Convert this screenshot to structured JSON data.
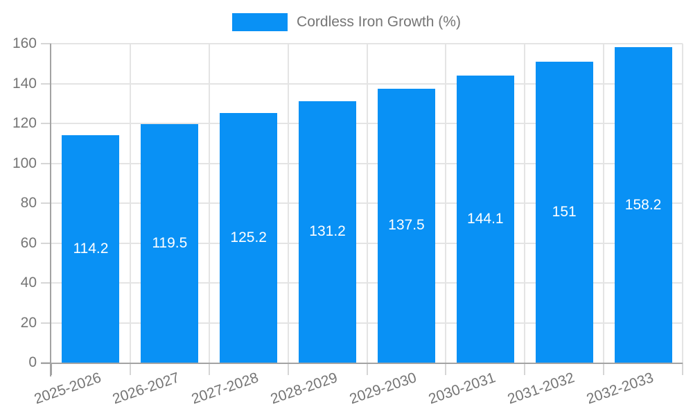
{
  "legend": {
    "label": "Cordless Iron Growth (%)"
  },
  "colors": {
    "bar": "#0991f5",
    "bar_label": "#ffffff",
    "axis": "#a3a3a3",
    "grid": "#e4e4e4",
    "tick": "#d6d6d6",
    "text": "#757575",
    "background": "#ffffff"
  },
  "chart_data": {
    "type": "bar",
    "title": "",
    "xlabel": "",
    "ylabel": "",
    "categories": [
      "2025-2026",
      "2026-2027",
      "2027-2028",
      "2028-2029",
      "2029-2030",
      "2030-2031",
      "2031-2032",
      "2032-2033"
    ],
    "series": [
      {
        "name": "Cordless Iron Growth (%)",
        "values": [
          114.2,
          119.5,
          125.2,
          131.2,
          137.5,
          144.1,
          151,
          158.2
        ],
        "value_labels": [
          "114.2",
          "119.5",
          "125.2",
          "131.2",
          "137.5",
          "144.1",
          "151",
          "158.2"
        ]
      }
    ],
    "ylim": [
      0,
      160
    ],
    "yticks": [
      0,
      20,
      40,
      60,
      80,
      100,
      120,
      140,
      160
    ],
    "grid": true,
    "legend_position": "top"
  }
}
